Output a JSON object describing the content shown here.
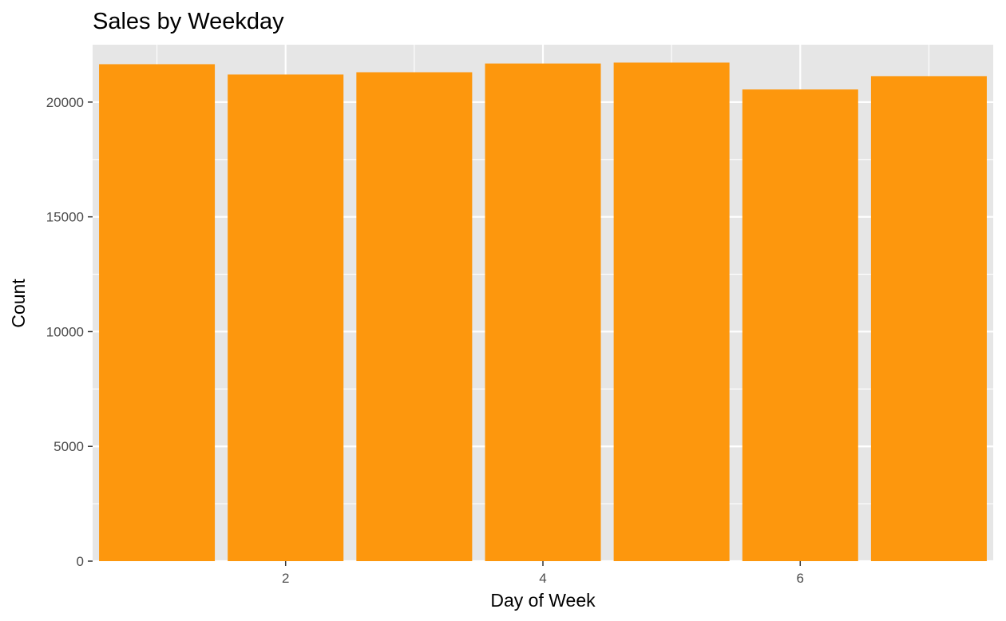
{
  "chart_data": {
    "type": "bar",
    "title": "Sales by Weekday",
    "xlabel": "Day of Week",
    "ylabel": "Count",
    "x": [
      1,
      2,
      3,
      4,
      5,
      6,
      7
    ],
    "values": [
      21650,
      21200,
      21300,
      21680,
      21720,
      20550,
      21130
    ],
    "xlim": [
      0.5,
      7.5
    ],
    "ylim": [
      0,
      22500
    ],
    "x_ticks": [
      2,
      4,
      6
    ],
    "y_ticks": [
      0,
      5000,
      10000,
      15000,
      20000
    ],
    "x_tick_labels": [
      "2",
      "4",
      "6"
    ],
    "y_tick_labels": [
      "0",
      "5000",
      "10000",
      "15000",
      "20000"
    ],
    "grid": true,
    "legend": "none",
    "colors": {
      "bar": "#FD970D",
      "panel": "#E6E6E6",
      "grid": "#FFFFFF"
    }
  }
}
